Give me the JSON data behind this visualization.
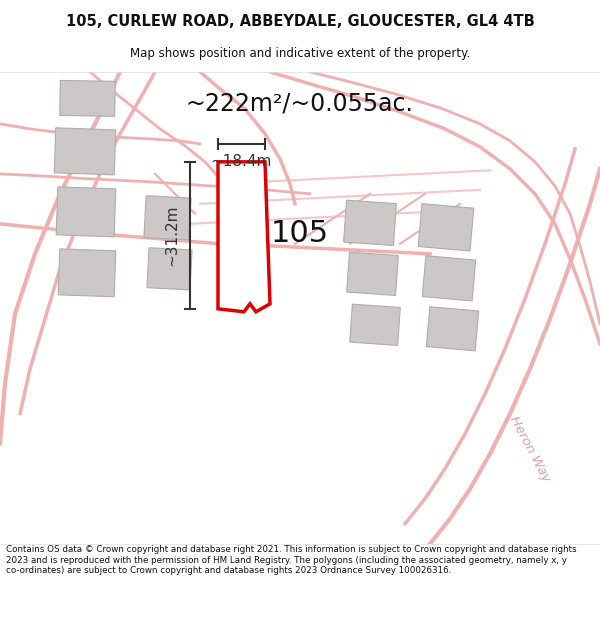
{
  "title_line1": "105, CURLEW ROAD, ABBEYDALE, GLOUCESTER, GL4 4TB",
  "title_line2": "Map shows position and indicative extent of the property.",
  "area_text": "~222m²/~0.055ac.",
  "label_105": "105",
  "dim_vertical": "~31.2m",
  "dim_horizontal": "~18.4m",
  "footer": "Contains OS data © Crown copyright and database right 2021. This information is subject to Crown copyright and database rights 2023 and is reproduced with the permission of HM Land Registry. The polygons (including the associated geometry, namely x, y co-ordinates) are subject to Crown copyright and database rights 2023 Ordnance Survey 100026316.",
  "map_bg": "#fdf6f6",
  "road_color": "#f0b0b0",
  "building_color": "#ccc8c8",
  "building_edge": "#b0acac",
  "property_color": "#dd0000",
  "dim_color": "#333333",
  "text_color": "#111111",
  "heron_color": "#e0a0a0"
}
